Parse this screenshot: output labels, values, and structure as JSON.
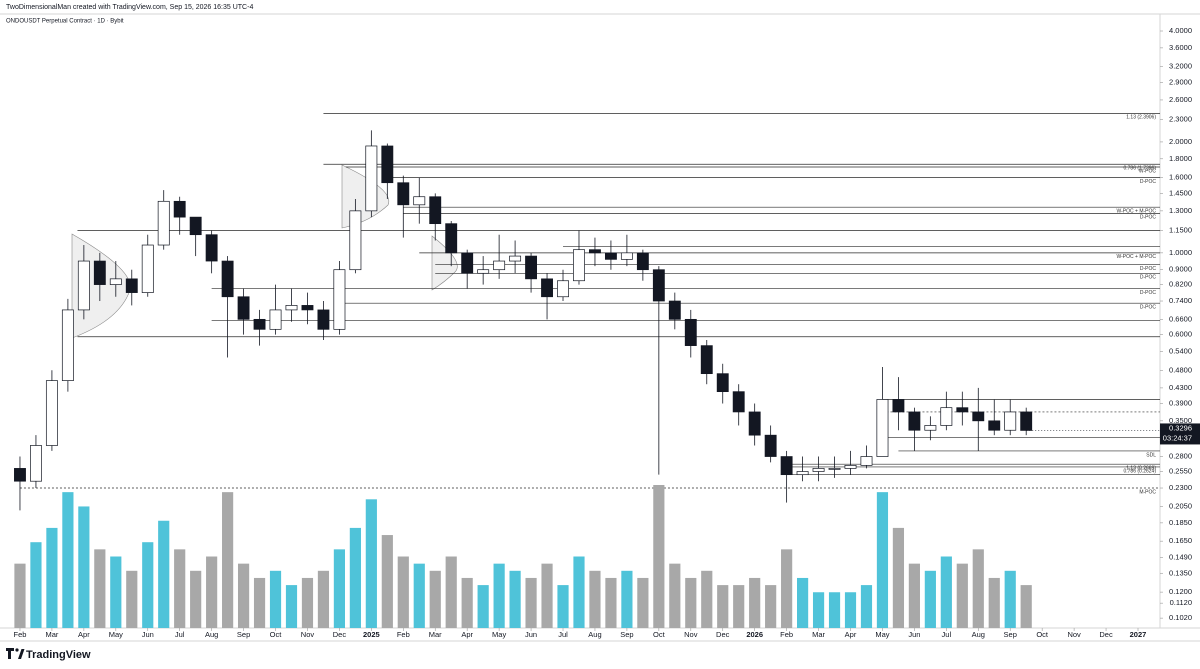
{
  "header": {
    "credit": "TwoDimensionalMan created with TradingView.com, Sep 15, 2026 16:35 UTC-4",
    "brand": "TradingView"
  },
  "chart_data": {
    "type": "candlestick",
    "title": "ONDOUSDT Perpetual Contract · 1D · Bybit",
    "log_scale": true,
    "ylim": [
      0.0959,
      4.153
    ],
    "yticks": [
      {
        "value": 4,
        "label": "4.0000"
      },
      {
        "value": 3.6,
        "label": "3.6000"
      },
      {
        "value": 3.2,
        "label": "3.2000"
      },
      {
        "value": 2.9,
        "label": "2.9000"
      },
      {
        "value": 2.6,
        "label": "2.6000"
      },
      {
        "value": 2.3,
        "label": "2.3000"
      },
      {
        "value": 2,
        "label": "2.0000"
      },
      {
        "value": 1.8,
        "label": "1.8000"
      },
      {
        "value": 1.6,
        "label": "1.6000"
      },
      {
        "value": 1.45,
        "label": "1.4500"
      },
      {
        "value": 1.3,
        "label": "1.3000"
      },
      {
        "value": 1.15,
        "label": "1.1500"
      },
      {
        "value": 1,
        "label": "1.0000"
      },
      {
        "value": 0.9,
        "label": "0.9000"
      },
      {
        "value": 0.82,
        "label": "0.8200"
      },
      {
        "value": 0.74,
        "label": "0.7400"
      },
      {
        "value": 0.66,
        "label": "0.6600"
      },
      {
        "value": 0.6,
        "label": "0.6000"
      },
      {
        "value": 0.54,
        "label": "0.5400"
      },
      {
        "value": 0.48,
        "label": "0.4800"
      },
      {
        "value": 0.43,
        "label": "0.4300"
      },
      {
        "value": 0.39,
        "label": "0.3900"
      },
      {
        "value": 0.35,
        "label": "0.3500"
      },
      {
        "value": 0.28,
        "label": "0.2800"
      },
      {
        "value": 0.255,
        "label": "0.2550"
      },
      {
        "value": 0.23,
        "label": "0.2300"
      },
      {
        "value": 0.205,
        "label": "0.2050"
      },
      {
        "value": 0.185,
        "label": "0.1850"
      },
      {
        "value": 0.165,
        "label": "0.1650"
      },
      {
        "value": 0.149,
        "label": "0.1490"
      },
      {
        "value": 0.135,
        "label": "0.1350"
      },
      {
        "value": 0.12,
        "label": "0.1200"
      },
      {
        "value": 0.112,
        "label": "0.1120"
      },
      {
        "value": 0.102,
        "label": "0.1020"
      }
    ],
    "xlim": [
      -0.5,
      35.5
    ],
    "xticks": [
      {
        "value": 0,
        "label": "Feb"
      },
      {
        "value": 1,
        "label": "Mar"
      },
      {
        "value": 2,
        "label": "Apr"
      },
      {
        "value": 3,
        "label": "May"
      },
      {
        "value": 4,
        "label": "Jun"
      },
      {
        "value": 5,
        "label": "Jul"
      },
      {
        "value": 6,
        "label": "Aug"
      },
      {
        "value": 7,
        "label": "Sep"
      },
      {
        "value": 8,
        "label": "Oct"
      },
      {
        "value": 9,
        "label": "Nov"
      },
      {
        "value": 10,
        "label": "Dec"
      },
      {
        "value": 11,
        "label": "2025"
      },
      {
        "value": 12,
        "label": "Feb"
      },
      {
        "value": 13,
        "label": "Mar"
      },
      {
        "value": 14,
        "label": "Apr"
      },
      {
        "value": 15,
        "label": "May"
      },
      {
        "value": 16,
        "label": "Jun"
      },
      {
        "value": 17,
        "label": "Jul"
      },
      {
        "value": 18,
        "label": "Aug"
      },
      {
        "value": 19,
        "label": "Sep"
      },
      {
        "value": 20,
        "label": "Oct"
      },
      {
        "value": 21,
        "label": "Nov"
      },
      {
        "value": 22,
        "label": "Dec"
      },
      {
        "value": 23,
        "label": "2026"
      },
      {
        "value": 24,
        "label": "Feb"
      },
      {
        "value": 25,
        "label": "Mar"
      },
      {
        "value": 26,
        "label": "Apr"
      },
      {
        "value": 27,
        "label": "May"
      },
      {
        "value": 28,
        "label": "Jun"
      },
      {
        "value": 29,
        "label": "Jul"
      },
      {
        "value": 30,
        "label": "Aug"
      },
      {
        "value": 31,
        "label": "Sep"
      },
      {
        "value": 32,
        "label": "Oct"
      },
      {
        "value": 33,
        "label": "Nov"
      },
      {
        "value": 34,
        "label": "Dec"
      },
      {
        "value": 35,
        "label": "2027"
      }
    ],
    "x": [
      0,
      0.5,
      1,
      1.5,
      2,
      2.5,
      3,
      3.5,
      4,
      4.5,
      5,
      5.5,
      6,
      6.5,
      7,
      7.5,
      8,
      8.5,
      9,
      9.5,
      10,
      10.5,
      11,
      11.5,
      12,
      12.5,
      13,
      13.5,
      14,
      14.5,
      15,
      15.5,
      16,
      16.5,
      17,
      17.5,
      18,
      18.5,
      19,
      19.5,
      20,
      20.5,
      21,
      21.5,
      22,
      22.5,
      23,
      23.5,
      24,
      24.5,
      25,
      25.5,
      26,
      26.5,
      27,
      27.5,
      28,
      28.5,
      29,
      29.5,
      30,
      30.5,
      31,
      31.5
    ],
    "open": [
      0.26,
      0.24,
      0.3,
      0.45,
      0.7,
      0.95,
      0.82,
      0.85,
      0.78,
      1.05,
      1.38,
      1.25,
      1.12,
      0.95,
      0.76,
      0.66,
      0.62,
      0.7,
      0.72,
      0.7,
      0.62,
      0.9,
      1.3,
      1.95,
      1.55,
      1.35,
      1.42,
      1.2,
      1.0,
      0.88,
      0.9,
      0.95,
      0.98,
      0.85,
      0.76,
      0.84,
      1.02,
      1.0,
      0.96,
      1.0,
      0.9,
      0.74,
      0.66,
      0.56,
      0.47,
      0.42,
      0.37,
      0.32,
      0.28,
      0.25,
      0.255,
      0.26,
      0.26,
      0.265,
      0.28,
      0.4,
      0.37,
      0.33,
      0.34,
      0.38,
      0.37,
      0.35,
      0.33,
      0.37
    ],
    "high": [
      0.28,
      0.32,
      0.48,
      0.75,
      1.05,
      1.0,
      0.95,
      0.9,
      1.12,
      1.48,
      1.42,
      1.22,
      1.15,
      0.98,
      0.8,
      0.7,
      0.82,
      0.8,
      0.78,
      0.74,
      0.95,
      1.4,
      2.15,
      1.98,
      1.62,
      1.6,
      1.45,
      1.22,
      1.02,
      0.98,
      1.12,
      1.08,
      1.0,
      0.88,
      0.9,
      1.15,
      1.1,
      1.08,
      1.12,
      1.02,
      0.92,
      0.78,
      0.7,
      0.58,
      0.5,
      0.44,
      0.39,
      0.34,
      0.29,
      0.28,
      0.28,
      0.28,
      0.29,
      0.3,
      0.49,
      0.46,
      0.38,
      0.36,
      0.42,
      0.42,
      0.43,
      0.4,
      0.4,
      0.38
    ],
    "low": [
      0.2,
      0.23,
      0.29,
      0.42,
      0.66,
      0.74,
      0.76,
      0.72,
      0.76,
      1.02,
      1.12,
      0.98,
      0.88,
      0.52,
      0.6,
      0.56,
      0.6,
      0.65,
      0.64,
      0.58,
      0.6,
      0.88,
      1.25,
      1.4,
      1.1,
      1.2,
      1.08,
      0.92,
      0.8,
      0.82,
      0.85,
      0.88,
      0.78,
      0.66,
      0.74,
      0.82,
      0.92,
      0.9,
      0.92,
      0.84,
      0.25,
      0.62,
      0.52,
      0.44,
      0.39,
      0.34,
      0.3,
      0.27,
      0.21,
      0.24,
      0.24,
      0.245,
      0.25,
      0.26,
      0.28,
      0.33,
      0.29,
      0.31,
      0.33,
      0.34,
      0.29,
      0.32,
      0.32,
      0.32
    ],
    "close": [
      0.24,
      0.3,
      0.45,
      0.7,
      0.95,
      0.82,
      0.85,
      0.78,
      1.05,
      1.38,
      1.25,
      1.12,
      0.95,
      0.76,
      0.66,
      0.62,
      0.7,
      0.72,
      0.7,
      0.62,
      0.9,
      1.3,
      1.95,
      1.55,
      1.35,
      1.42,
      1.2,
      1.0,
      0.88,
      0.9,
      0.95,
      0.98,
      0.85,
      0.76,
      0.84,
      1.02,
      1.0,
      0.96,
      1.0,
      0.9,
      0.74,
      0.66,
      0.56,
      0.47,
      0.42,
      0.37,
      0.32,
      0.28,
      0.25,
      0.255,
      0.26,
      0.26,
      0.265,
      0.28,
      0.4,
      0.37,
      0.33,
      0.34,
      0.38,
      0.37,
      0.35,
      0.33,
      0.37,
      0.3296
    ],
    "volume": [
      45,
      60,
      70,
      95,
      85,
      55,
      50,
      40,
      60,
      75,
      55,
      40,
      50,
      95,
      45,
      35,
      40,
      30,
      35,
      40,
      55,
      70,
      90,
      65,
      50,
      45,
      40,
      50,
      35,
      30,
      45,
      40,
      35,
      45,
      30,
      50,
      40,
      35,
      40,
      35,
      100,
      45,
      35,
      40,
      30,
      30,
      35,
      30,
      55,
      35,
      25,
      25,
      25,
      30,
      95,
      70,
      45,
      40,
      50,
      45,
      55,
      35,
      40,
      30
    ],
    "vlim": [
      0,
      100
    ],
    "up_color": "#ffffff",
    "down_color": "#131722",
    "volume_up_color": "#4fc3d9",
    "volume_down_color": "#a8a8a8",
    "last_price": 0.3296,
    "countdown": "03:24:37",
    "levels": [
      {
        "price": 2.3906,
        "label": "1.13 (2.3906)",
        "start": 9.5
      },
      {
        "price": 1.7396,
        "label": "0.786 (1.7396)",
        "start": 9.5
      },
      {
        "price": 1.71,
        "label": "W-POC",
        "start": 10.2
      },
      {
        "price": 1.6,
        "label": "D-POC",
        "start": 11.5
      },
      {
        "price": 1.33,
        "label": "W-POC + M-POC",
        "start": 12
      },
      {
        "price": 1.28,
        "label": "D-POC",
        "start": 12
      },
      {
        "price": 1.15,
        "start": 1.8
      },
      {
        "price": 1.04,
        "start": 17
      },
      {
        "price": 1.0,
        "label": "W-POC + M-POC",
        "start": 12.5
      },
      {
        "price": 0.93,
        "label": "D-POC",
        "start": 13
      },
      {
        "price": 0.88,
        "label": "D-POC",
        "start": 13
      },
      {
        "price": 0.8,
        "label": "D-POC",
        "start": 6
      },
      {
        "price": 0.73,
        "label": "D-POC",
        "start": 10
      },
      {
        "price": 0.655,
        "start": 6
      },
      {
        "price": 0.592,
        "start": 1.8
      },
      {
        "price": 0.4,
        "start": 27
      },
      {
        "price": 0.37,
        "start": 27,
        "style": "dashed"
      },
      {
        "price": 0.315,
        "start": 27
      },
      {
        "price": 0.29,
        "label": "SDL",
        "start": 27.5
      },
      {
        "price": 0.2669,
        "label": "1.13 (0.2669)",
        "start": 24
      },
      {
        "price": 0.2624,
        "label": "0.786 (0.2624)",
        "start": 24
      },
      {
        "price": 0.25,
        "start": 24
      },
      {
        "price": 0.23,
        "label": "M-POC",
        "start": 0,
        "style": "dashed"
      }
    ]
  }
}
